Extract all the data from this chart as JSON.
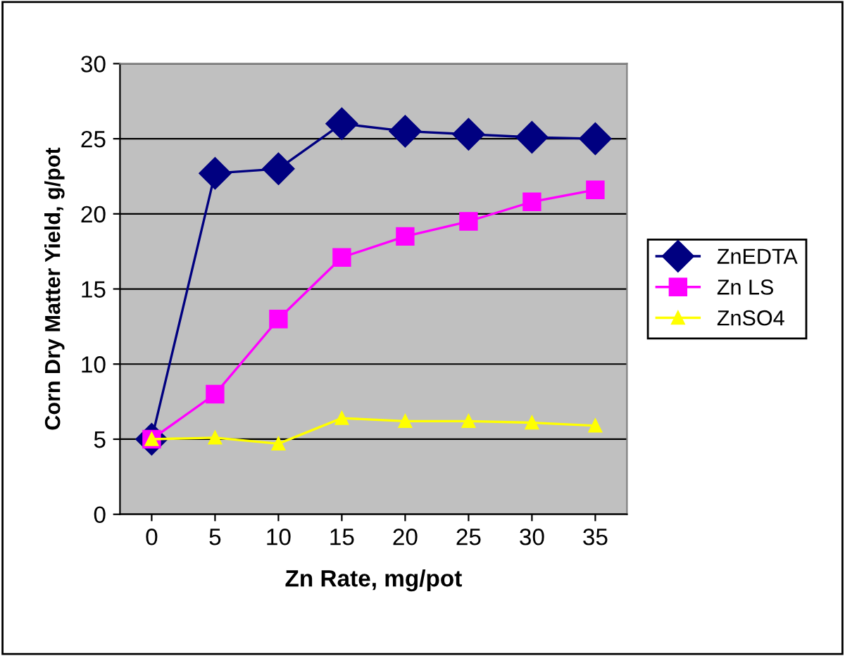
{
  "chart_data": {
    "type": "line",
    "xlabel": "Zn Rate, mg/pot",
    "ylabel": "Corn Dry Matter Yield, g/pot",
    "categories": [
      "0",
      "5",
      "10",
      "15",
      "20",
      "25",
      "30",
      "35"
    ],
    "series": [
      {
        "name": "ZnEDTA",
        "color": "#000080",
        "marker": "diamond",
        "values": [
          5.0,
          22.7,
          23.0,
          26.0,
          25.5,
          25.3,
          25.1,
          25.0
        ]
      },
      {
        "name": "Zn LS",
        "color": "#ff00ff",
        "marker": "square",
        "values": [
          5.0,
          8.0,
          13.0,
          17.1,
          18.5,
          19.5,
          20.8,
          21.6
        ]
      },
      {
        "name": "ZnSO4",
        "color": "#ffff00",
        "marker": "triangle",
        "values": [
          5.0,
          5.1,
          4.7,
          6.4,
          6.2,
          6.2,
          6.1,
          5.9
        ]
      }
    ],
    "ylim": [
      0,
      30
    ],
    "yticks": [
      0,
      5,
      10,
      15,
      20,
      25,
      30
    ],
    "grid": "y",
    "legend": "right"
  }
}
